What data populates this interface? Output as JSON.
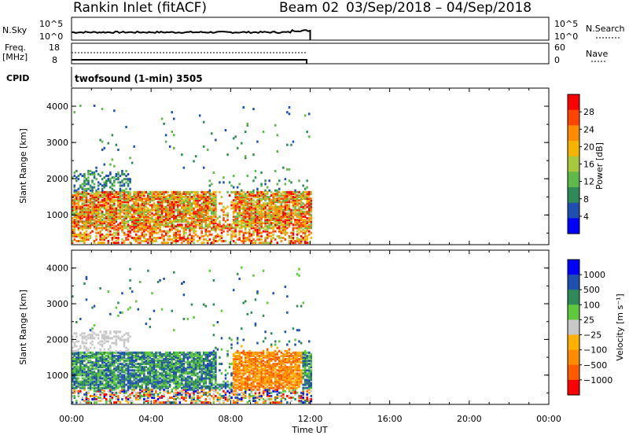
{
  "header": {
    "station": "Rankin Inlet (fitACF)",
    "beam": "Beam 02",
    "dates": "03/Sep/2018 – 04/Sep/2018"
  },
  "nsky": {
    "left_label": "N.Sky",
    "left_ticks": [
      "10^5",
      "10^0"
    ],
    "right_ticks": [
      "10^5",
      "10^0"
    ],
    "right_label": "N.Search"
  },
  "freq": {
    "left_label_1": "Freq.",
    "left_label_2": "[MHz]",
    "left_ticks": [
      "18",
      "8"
    ],
    "right_ticks": [
      "60",
      "0"
    ],
    "right_label": "Nave"
  },
  "cpid": {
    "label": "CPID",
    "mode": "twofsound (1-min) 3505"
  },
  "time_axis": {
    "label": "Time UT",
    "ticks": [
      "00:00",
      "04:00",
      "08:00",
      "12:00",
      "16:00",
      "20:00",
      "00:00"
    ]
  },
  "colors": {
    "background": "#ffffff",
    "axis": "#000000",
    "power_scale": [
      "#0000ff",
      "#1f4fb0",
      "#2e8b57",
      "#5fb84a",
      "#a8c83c",
      "#f5b400",
      "#ff8c00",
      "#ff4500",
      "#ff0000"
    ],
    "velocity_scale": [
      "#ff0000",
      "#ff5a00",
      "#ff8c00",
      "#ffb000",
      "#c8c8c8",
      "#5fc83c",
      "#2e8b57",
      "#1f4fb0",
      "#0000ff"
    ]
  },
  "chart_data": [
    {
      "type": "heatmap",
      "name": "power",
      "xlabel": "Time UT",
      "ylabel": "Slant Range [km]",
      "xlim": [
        0,
        24
      ],
      "ylim": [
        180,
        4500
      ],
      "yticks": [
        "1000",
        "2000",
        "3000",
        "4000"
      ],
      "colorbar": {
        "label": "Power [dB]",
        "ticks": [
          "4",
          "8",
          "12",
          "16",
          "20",
          "24",
          "28"
        ],
        "range": [
          0,
          32
        ]
      },
      "data_end_hour": 12
    },
    {
      "type": "heatmap",
      "name": "velocity",
      "xlabel": "Time UT",
      "ylabel": "Slant Range [km]",
      "xlim": [
        0,
        24
      ],
      "ylim": [
        180,
        4500
      ],
      "yticks": [
        "1000",
        "2000",
        "3000",
        "4000"
      ],
      "colorbar": {
        "label": "Velocity [m s⁻¹]",
        "ticks": [
          "1000",
          "500",
          "100",
          "25",
          "−25",
          "−100",
          "−500",
          "−1000"
        ]
      },
      "data_end_hour": 12
    }
  ]
}
